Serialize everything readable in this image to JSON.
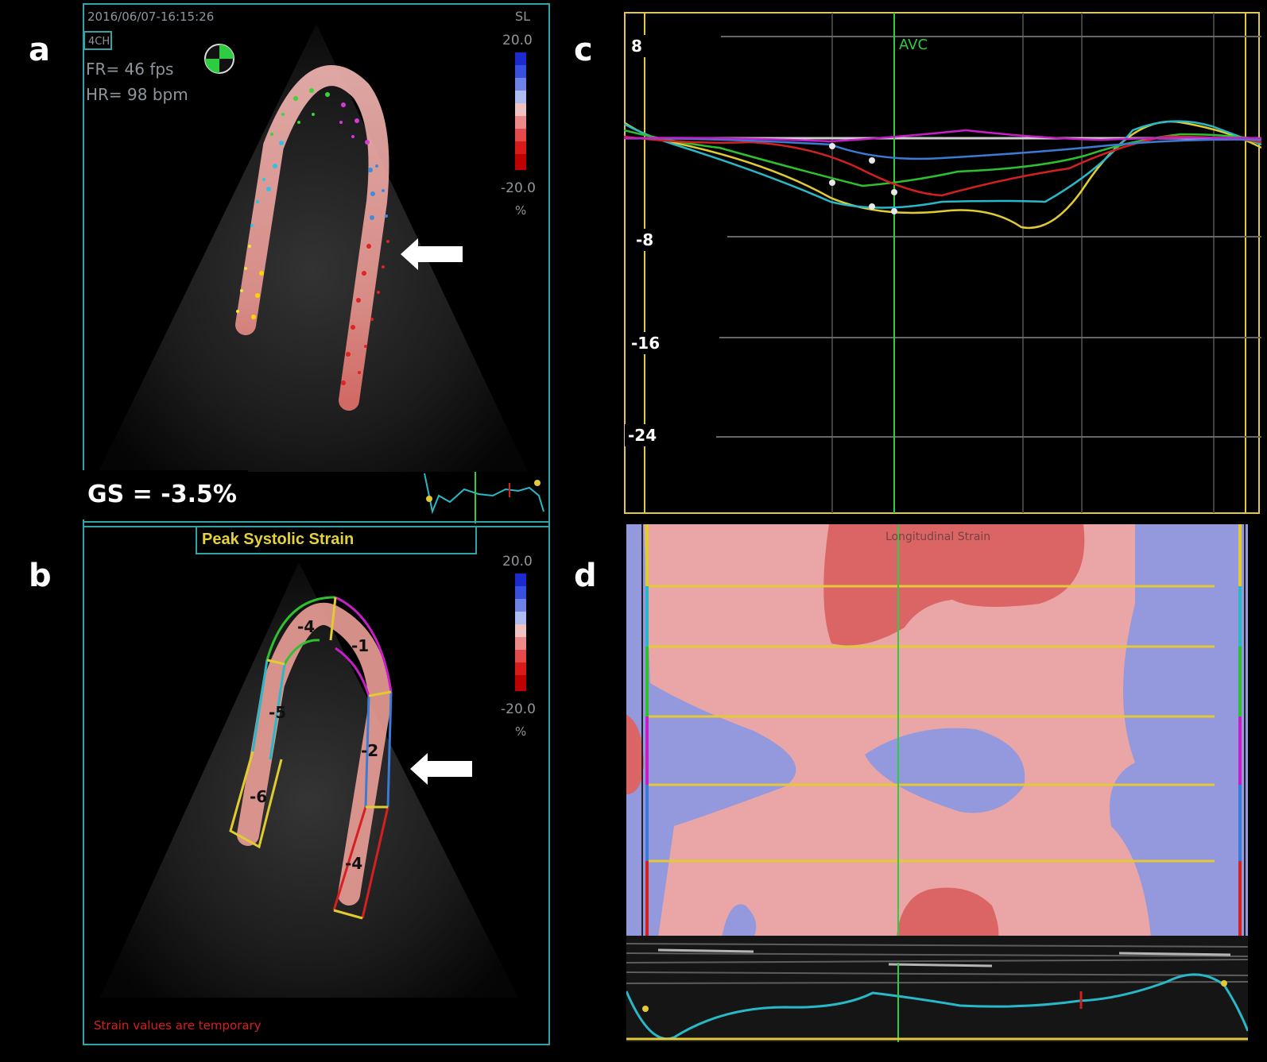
{
  "panels": {
    "a": {
      "letter": "a",
      "timestamp": "2016/06/07-16:15:26",
      "view_tag": "4CH",
      "frame_rate": "FR= 46 fps",
      "heart_rate": "HR= 98 bpm",
      "scale_label": "SL",
      "scale_max": "20.0",
      "scale_min": "-20.0",
      "scale_unit": "%",
      "global_strain": "GS = -3.5%"
    },
    "b": {
      "letter": "b",
      "title": "Peak Systolic Strain",
      "scale_max": "20.0",
      "scale_min": "-20.0",
      "scale_unit": "%",
      "segment_values": [
        "-4",
        "-1",
        "-5",
        "-2",
        "-6",
        "-4"
      ],
      "warning": "Strain values are temporary"
    },
    "c": {
      "letter": "c",
      "marker_label": "AVC",
      "y_ticks": [
        "8",
        "-8",
        "-16",
        "-24"
      ]
    },
    "d": {
      "letter": "d",
      "title": "Longitudinal Strain"
    }
  },
  "colors": {
    "frame_border": "#2fa3a6",
    "avc_marker": "#2ecc40",
    "yellow": "#e3c93a",
    "strain_positive": "#d13b3b",
    "strain_negative": "#3452c8",
    "segment_green": "#2ec02e",
    "segment_magenta": "#c81ec8",
    "segment_blue": "#3a7bd5",
    "segment_red": "#d42020",
    "segment_cyan": "#28b8c8",
    "segment_yellow": "#e0cc30"
  },
  "icons": [
    "arrow-left-icon",
    "orientation-icon"
  ]
}
